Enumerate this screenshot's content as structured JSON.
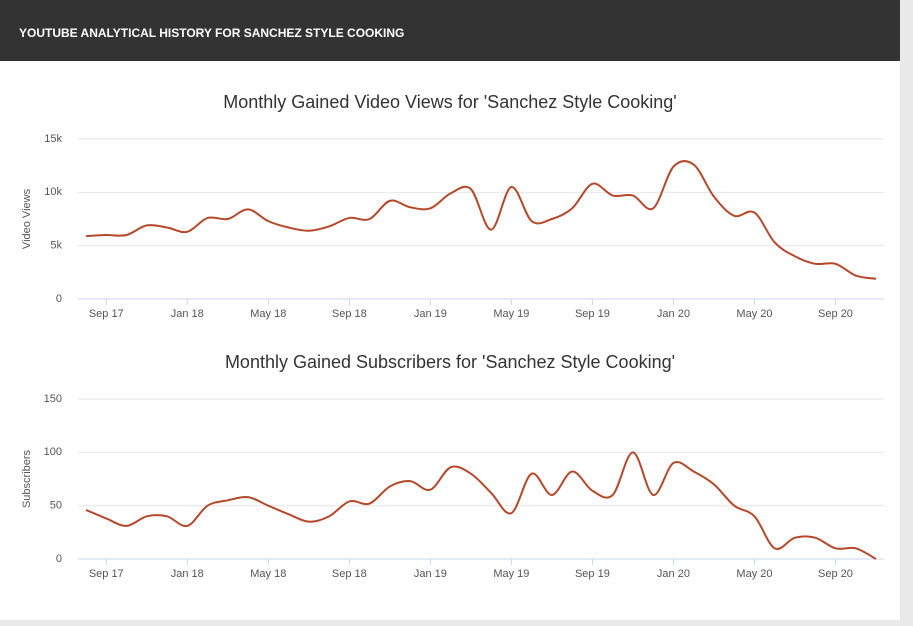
{
  "header": {
    "title": "YOUTUBE ANALYTICAL HISTORY FOR SANCHEZ STYLE COOKING"
  },
  "chart_data": [
    {
      "type": "line",
      "title": "Monthly Gained Video Views for 'Sanchez Style Cooking'",
      "y_label": "Video Views",
      "categories": [
        null,
        "Sep 17",
        null,
        null,
        null,
        "Jan 18",
        null,
        null,
        null,
        "May 18",
        null,
        null,
        null,
        "Sep 18",
        null,
        null,
        null,
        "Jan 19",
        null,
        null,
        null,
        "May 19",
        null,
        null,
        null,
        "Sep 19",
        null,
        null,
        null,
        "Jan 20",
        null,
        null,
        null,
        "May 20",
        null,
        null,
        null,
        "Sep 20",
        null,
        null
      ],
      "series": [
        {
          "name": "Video Views",
          "color": "#b5482a",
          "values": [
            5900,
            6000,
            6000,
            6900,
            6700,
            6300,
            7600,
            7500,
            8400,
            7300,
            6700,
            6400,
            6800,
            7600,
            7500,
            9200,
            8600,
            8500,
            9900,
            10300,
            6500,
            10500,
            7300,
            7500,
            8500,
            10800,
            9700,
            9700,
            8500,
            12400,
            12600,
            9600,
            7800,
            8100,
            5300,
            4000,
            3300,
            3300,
            2200,
            1900
          ]
        }
      ],
      "ylim": [
        0,
        15000
      ],
      "yticks": [
        0,
        {
          "value": 5000,
          "label": "5k"
        },
        {
          "value": 10000,
          "label": "10k"
        },
        {
          "value": 15000,
          "label": "15k"
        }
      ],
      "grid": true
    },
    {
      "type": "line",
      "title": "Monthly Gained Subscribers for 'Sanchez Style Cooking'",
      "y_label": "Subscribers",
      "categories": [
        null,
        "Sep 17",
        null,
        null,
        null,
        "Jan 18",
        null,
        null,
        null,
        "May 18",
        null,
        null,
        null,
        "Sep 18",
        null,
        null,
        null,
        "Jan 19",
        null,
        null,
        null,
        "May 19",
        null,
        null,
        null,
        "Sep 19",
        null,
        null,
        null,
        "Jan 20",
        null,
        null,
        null,
        "May 20",
        null,
        null,
        null,
        "Sep 20",
        null,
        null
      ],
      "series": [
        {
          "name": "Subscribers",
          "color": "#b5482a",
          "values": [
            46,
            38,
            31,
            40,
            40,
            31,
            50,
            55,
            58,
            50,
            42,
            35,
            40,
            54,
            52,
            68,
            73,
            65,
            86,
            80,
            62,
            43,
            80,
            60,
            82,
            64,
            60,
            100,
            60,
            90,
            82,
            70,
            50,
            40,
            10,
            20,
            20,
            10,
            10,
            0
          ]
        }
      ],
      "ylim": [
        0,
        150
      ],
      "yticks": [
        0,
        50,
        100,
        150
      ],
      "grid": true
    }
  ]
}
